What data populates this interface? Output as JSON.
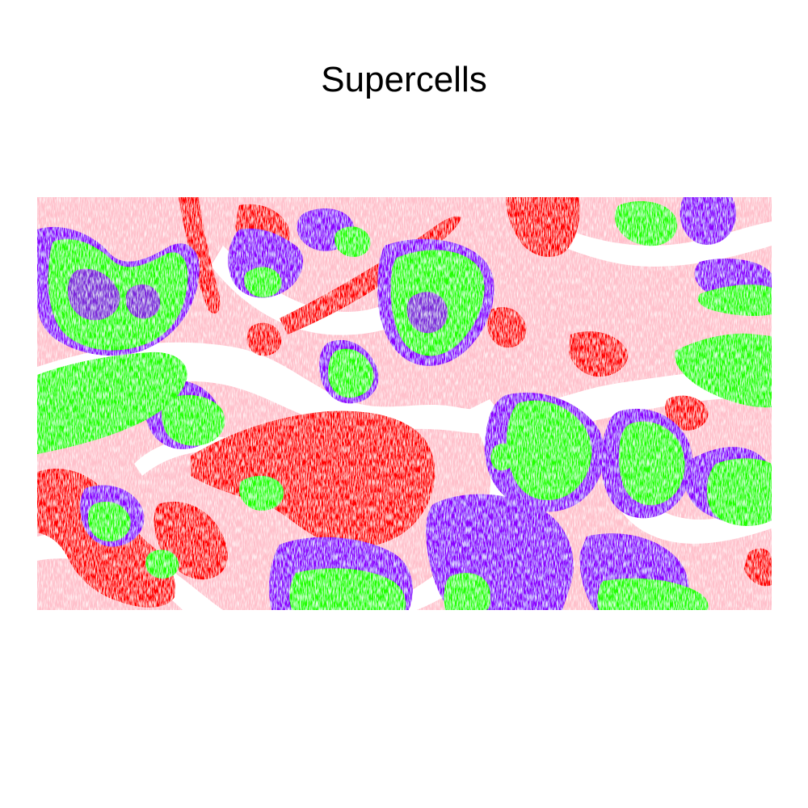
{
  "title": "Supercells",
  "palette": {
    "background": "#ffffff",
    "light": "#ffc0cb",
    "red": "#ff0000",
    "purple": "#8b00ff",
    "green": "#22ff00"
  }
}
